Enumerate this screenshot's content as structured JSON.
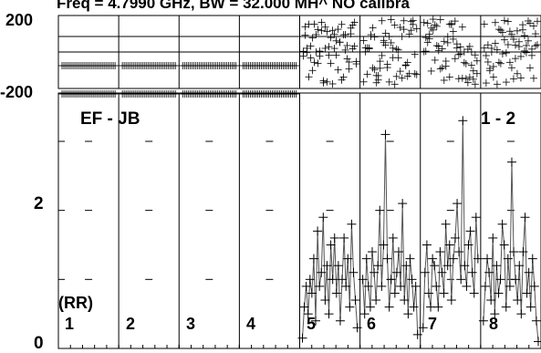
{
  "chart_data": {
    "type": "scatter",
    "title": "Freq = 4.7990 GHz, BW = 32.000 MH^  NO calibra",
    "baseline_label": "EF - JB",
    "baseline_label_right": "1 - 2",
    "polarization_label": "(RR)",
    "panel_labels": [
      "1",
      "2",
      "3",
      "4",
      "5",
      "6",
      "7",
      "8"
    ],
    "phase_panel": {
      "ylabel_top": "200",
      "ylabel_bottom": "-200",
      "ylim": [
        -200,
        200
      ]
    },
    "amp_panel": {
      "ytick_labels": [
        "0",
        "2"
      ],
      "ylim": [
        0,
        3.7
      ]
    },
    "channels_per_panel": 30,
    "amplitude_series": [
      {
        "panel": 5,
        "values": [
          0.15,
          0.6,
          0.9,
          0.5,
          1.0,
          0.8,
          1.3,
          0.4,
          1.7,
          0.9,
          1.1,
          1.9,
          0.7,
          1.2,
          0.5,
          1.5,
          1.0,
          1.6,
          0.8,
          1.2,
          0.4,
          1.0,
          1.6,
          0.9,
          1.3,
          0.6,
          1.8,
          1.1,
          0.7,
          0.3
        ]
      },
      {
        "panel": 6,
        "values": [
          1.0,
          0.5,
          1.3,
          0.9,
          0.6,
          1.4,
          1.1,
          0.7,
          1.2,
          2.0,
          0.9,
          1.5,
          3.1,
          1.3,
          0.6,
          1.0,
          1.6,
          0.8,
          1.1,
          1.4,
          0.9,
          2.1,
          0.7,
          1.2,
          0.5,
          1.3,
          1.0,
          0.6,
          0.9,
          0.2
        ]
      },
      {
        "panel": 7,
        "values": [
          0.3,
          1.1,
          1.5,
          0.8,
          0.6,
          1.3,
          1.2,
          0.9,
          0.6,
          1.4,
          1.1,
          0.8,
          1.8,
          1.2,
          1.5,
          0.7,
          1.3,
          1.6,
          2.1,
          1.4,
          1.0,
          3.3,
          1.2,
          0.9,
          1.5,
          1.7,
          1.1,
          0.8,
          1.9,
          1.3
        ]
      },
      {
        "panel": 8,
        "values": [
          0.4,
          0.9,
          1.3,
          1.1,
          0.7,
          1.6,
          0.5,
          1.2,
          0.8,
          1.0,
          1.8,
          1.5,
          0.6,
          1.3,
          0.9,
          2.7,
          1.4,
          1.0,
          0.7,
          1.2,
          0.5,
          1.4,
          1.9,
          0.8,
          1.1,
          0.6,
          1.3,
          0.9,
          0.4,
          0.1
        ]
      }
    ]
  }
}
